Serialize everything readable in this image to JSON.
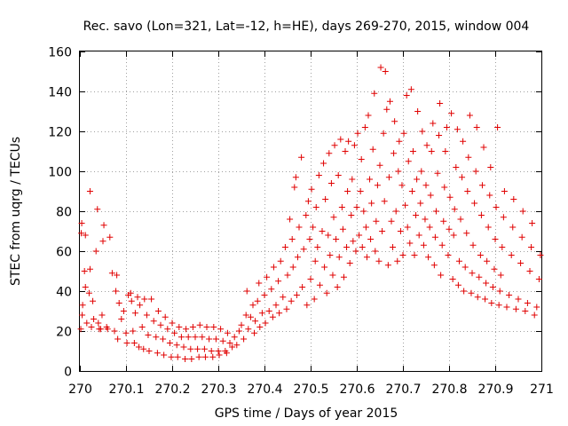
{
  "chart_data": {
    "type": "scatter",
    "title": "Rec. savo (Lon=321, Lat=-12, h=HE), days 269-270, 2015, window 004",
    "xlabel": "GPS time / Days of year 2015",
    "ylabel": "STEC from uqrg / TECUs",
    "xlim": [
      270,
      271
    ],
    "ylim": [
      0,
      160
    ],
    "xticks": [
      270,
      270.1,
      270.2,
      270.3,
      270.4,
      270.5,
      270.6,
      270.7,
      270.8,
      270.9,
      271
    ],
    "xtick_labels": [
      "270",
      "270.1",
      "270.2",
      "270.3",
      "270.4",
      "270.5",
      "270.6",
      "270.7",
      "270.8",
      "270.9",
      "271"
    ],
    "yticks": [
      0,
      20,
      40,
      60,
      80,
      100,
      120,
      140,
      160
    ],
    "ytick_labels": [
      "0",
      "20",
      "40",
      "60",
      "80",
      "100",
      "120",
      "140",
      "160"
    ],
    "grid": true,
    "marker": "+",
    "color": "#e00000",
    "points": [
      [
        270.002,
        21
      ],
      [
        270.003,
        69
      ],
      [
        270.004,
        74
      ],
      [
        270.005,
        28
      ],
      [
        270.006,
        33
      ],
      [
        270.01,
        50
      ],
      [
        270.012,
        68
      ],
      [
        270.012,
        42
      ],
      [
        270.015,
        24
      ],
      [
        270.02,
        39
      ],
      [
        270.022,
        51
      ],
      [
        270.022,
        90
      ],
      [
        270.025,
        22
      ],
      [
        270.028,
        35
      ],
      [
        270.03,
        26
      ],
      [
        270.035,
        60
      ],
      [
        270.038,
        81
      ],
      [
        270.04,
        24
      ],
      [
        270.042,
        21
      ],
      [
        270.045,
        21
      ],
      [
        270.048,
        28
      ],
      [
        270.05,
        65
      ],
      [
        270.052,
        73
      ],
      [
        270.058,
        22
      ],
      [
        270.06,
        21
      ],
      [
        270.065,
        67
      ],
      [
        270.07,
        49
      ],
      [
        270.075,
        20
      ],
      [
        270.078,
        40
      ],
      [
        270.08,
        48
      ],
      [
        270.082,
        16
      ],
      [
        270.085,
        34
      ],
      [
        270.09,
        26
      ],
      [
        270.095,
        30
      ],
      [
        270.1,
        19
      ],
      [
        270.102,
        14
      ],
      [
        270.105,
        38
      ],
      [
        270.11,
        39
      ],
      [
        270.112,
        35
      ],
      [
        270.115,
        20
      ],
      [
        270.118,
        14
      ],
      [
        270.12,
        29
      ],
      [
        270.125,
        37
      ],
      [
        270.128,
        12
      ],
      [
        270.13,
        33
      ],
      [
        270.135,
        22
      ],
      [
        270.138,
        11
      ],
      [
        270.14,
        36
      ],
      [
        270.145,
        28
      ],
      [
        270.148,
        18
      ],
      [
        270.15,
        10
      ],
      [
        270.155,
        36
      ],
      [
        270.16,
        25
      ],
      [
        270.165,
        17
      ],
      [
        270.168,
        9
      ],
      [
        270.17,
        30
      ],
      [
        270.175,
        23
      ],
      [
        270.18,
        16
      ],
      [
        270.182,
        8
      ],
      [
        270.185,
        27
      ],
      [
        270.19,
        21
      ],
      [
        270.195,
        14
      ],
      [
        270.198,
        7
      ],
      [
        270.2,
        24
      ],
      [
        270.205,
        19
      ],
      [
        270.21,
        13
      ],
      [
        270.212,
        7
      ],
      [
        270.215,
        22
      ],
      [
        270.22,
        17
      ],
      [
        270.225,
        12
      ],
      [
        270.228,
        6
      ],
      [
        270.23,
        21
      ],
      [
        270.235,
        17
      ],
      [
        270.24,
        11
      ],
      [
        270.242,
        6
      ],
      [
        270.245,
        22
      ],
      [
        270.25,
        17
      ],
      [
        270.255,
        11
      ],
      [
        270.258,
        7
      ],
      [
        270.26,
        23
      ],
      [
        270.265,
        17
      ],
      [
        270.27,
        11
      ],
      [
        270.272,
        7
      ],
      [
        270.275,
        22
      ],
      [
        270.28,
        16
      ],
      [
        270.285,
        10
      ],
      [
        270.288,
        7
      ],
      [
        270.29,
        22
      ],
      [
        270.295,
        16
      ],
      [
        270.3,
        10
      ],
      [
        270.302,
        8
      ],
      [
        270.305,
        21
      ],
      [
        270.31,
        15
      ],
      [
        270.315,
        10
      ],
      [
        270.318,
        9
      ],
      [
        270.32,
        19
      ],
      [
        270.325,
        14
      ],
      [
        270.33,
        12
      ],
      [
        270.335,
        17
      ],
      [
        270.34,
        13
      ],
      [
        270.345,
        20
      ],
      [
        270.35,
        23
      ],
      [
        270.355,
        16
      ],
      [
        270.36,
        28
      ],
      [
        270.362,
        40
      ],
      [
        270.365,
        21
      ],
      [
        270.37,
        27
      ],
      [
        270.375,
        33
      ],
      [
        270.378,
        19
      ],
      [
        270.38,
        25
      ],
      [
        270.385,
        35
      ],
      [
        270.388,
        44
      ],
      [
        270.39,
        22
      ],
      [
        270.395,
        29
      ],
      [
        270.4,
        38
      ],
      [
        270.402,
        24
      ],
      [
        270.405,
        47
      ],
      [
        270.41,
        30
      ],
      [
        270.415,
        41
      ],
      [
        270.418,
        27
      ],
      [
        270.42,
        52
      ],
      [
        270.425,
        33
      ],
      [
        270.43,
        45
      ],
      [
        270.432,
        29
      ],
      [
        270.435,
        55
      ],
      [
        270.44,
        37
      ],
      [
        270.445,
        62
      ],
      [
        270.448,
        31
      ],
      [
        270.45,
        48
      ],
      [
        270.455,
        76
      ],
      [
        270.458,
        35
      ],
      [
        270.46,
        66
      ],
      [
        270.462,
        52
      ],
      [
        270.465,
        92
      ],
      [
        270.468,
        97
      ],
      [
        270.47,
        38
      ],
      [
        270.472,
        57
      ],
      [
        270.475,
        72
      ],
      [
        270.48,
        107
      ],
      [
        270.482,
        42
      ],
      [
        270.485,
        61
      ],
      [
        270.49,
        78
      ],
      [
        270.492,
        33
      ],
      [
        270.495,
        85
      ],
      [
        270.498,
        66
      ],
      [
        270.5,
        46
      ],
      [
        270.502,
        91
      ],
      [
        270.505,
        72
      ],
      [
        270.508,
        36
      ],
      [
        270.51,
        55
      ],
      [
        270.512,
        82
      ],
      [
        270.515,
        62
      ],
      [
        270.518,
        98
      ],
      [
        270.52,
        43
      ],
      [
        270.525,
        70
      ],
      [
        270.528,
        104
      ],
      [
        270.53,
        52
      ],
      [
        270.532,
        86
      ],
      [
        270.535,
        39
      ],
      [
        270.538,
        68
      ],
      [
        270.54,
        109
      ],
      [
        270.542,
        58
      ],
      [
        270.545,
        94
      ],
      [
        270.548,
        48
      ],
      [
        270.55,
        77
      ],
      [
        270.552,
        113
      ],
      [
        270.555,
        66
      ],
      [
        270.558,
        42
      ],
      [
        270.56,
        98
      ],
      [
        270.562,
        57
      ],
      [
        270.565,
        116
      ],
      [
        270.568,
        82
      ],
      [
        270.57,
        71
      ],
      [
        270.572,
        47
      ],
      [
        270.575,
        110
      ],
      [
        270.578,
        62
      ],
      [
        270.58,
        90
      ],
      [
        270.582,
        115
      ],
      [
        270.585,
        54
      ],
      [
        270.588,
        78
      ],
      [
        270.59,
        96
      ],
      [
        270.592,
        65
      ],
      [
        270.595,
        113
      ],
      [
        270.598,
        60
      ],
      [
        270.6,
        82
      ],
      [
        270.602,
        119
      ],
      [
        270.605,
        68
      ],
      [
        270.608,
        90
      ],
      [
        270.61,
        106
      ],
      [
        270.612,
        62
      ],
      [
        270.615,
        80
      ],
      [
        270.618,
        122
      ],
      [
        270.62,
        72
      ],
      [
        270.622,
        57
      ],
      [
        270.625,
        128
      ],
      [
        270.628,
        96
      ],
      [
        270.63,
        66
      ],
      [
        270.632,
        84
      ],
      [
        270.635,
        111
      ],
      [
        270.638,
        139
      ],
      [
        270.64,
        60
      ],
      [
        270.642,
        75
      ],
      [
        270.645,
        93
      ],
      [
        270.648,
        55
      ],
      [
        270.65,
        103
      ],
      [
        270.652,
        152
      ],
      [
        270.655,
        70
      ],
      [
        270.658,
        119
      ],
      [
        270.66,
        85
      ],
      [
        270.662,
        150
      ],
      [
        270.665,
        131
      ],
      [
        270.668,
        53
      ],
      [
        270.67,
        97
      ],
      [
        270.672,
        135
      ],
      [
        270.675,
        75
      ],
      [
        270.678,
        62
      ],
      [
        270.68,
        109
      ],
      [
        270.682,
        125
      ],
      [
        270.685,
        80
      ],
      [
        270.688,
        55
      ],
      [
        270.69,
        100
      ],
      [
        270.692,
        115
      ],
      [
        270.695,
        70
      ],
      [
        270.698,
        93
      ],
      [
        270.7,
        58
      ],
      [
        270.702,
        119
      ],
      [
        270.705,
        83
      ],
      [
        270.708,
        138
      ],
      [
        270.71,
        72
      ],
      [
        270.712,
        105
      ],
      [
        270.715,
        64
      ],
      [
        270.718,
        141
      ],
      [
        270.72,
        90
      ],
      [
        270.722,
        110
      ],
      [
        270.725,
        58
      ],
      [
        270.728,
        78
      ],
      [
        270.73,
        96
      ],
      [
        270.732,
        130
      ],
      [
        270.735,
        68
      ],
      [
        270.738,
        84
      ],
      [
        270.74,
        100
      ],
      [
        270.742,
        120
      ],
      [
        270.745,
        63
      ],
      [
        270.748,
        76
      ],
      [
        270.75,
        93
      ],
      [
        270.752,
        113
      ],
      [
        270.755,
        57
      ],
      [
        270.758,
        72
      ],
      [
        270.76,
        88
      ],
      [
        270.762,
        110
      ],
      [
        270.765,
        124
      ],
      [
        270.768,
        53
      ],
      [
        270.77,
        67
      ],
      [
        270.772,
        80
      ],
      [
        270.775,
        99
      ],
      [
        270.778,
        118
      ],
      [
        270.78,
        134
      ],
      [
        270.782,
        48
      ],
      [
        270.785,
        63
      ],
      [
        270.788,
        75
      ],
      [
        270.79,
        92
      ],
      [
        270.792,
        110
      ],
      [
        270.795,
        122
      ],
      [
        270.798,
        58
      ],
      [
        270.8,
        71
      ],
      [
        270.802,
        87
      ],
      [
        270.805,
        129
      ],
      [
        270.808,
        46
      ],
      [
        270.81,
        68
      ],
      [
        270.812,
        81
      ],
      [
        270.815,
        102
      ],
      [
        270.818,
        121
      ],
      [
        270.82,
        43
      ],
      [
        270.822,
        55
      ],
      [
        270.825,
        76
      ],
      [
        270.828,
        97
      ],
      [
        270.83,
        115
      ],
      [
        270.832,
        40
      ],
      [
        270.835,
        52
      ],
      [
        270.838,
        69
      ],
      [
        270.84,
        90
      ],
      [
        270.842,
        107
      ],
      [
        270.845,
        128
      ],
      [
        270.848,
        39
      ],
      [
        270.85,
        49
      ],
      [
        270.852,
        63
      ],
      [
        270.855,
        84
      ],
      [
        270.858,
        100
      ],
      [
        270.86,
        122
      ],
      [
        270.862,
        37
      ],
      [
        270.865,
        47
      ],
      [
        270.868,
        58
      ],
      [
        270.87,
        78
      ],
      [
        270.872,
        93
      ],
      [
        270.875,
        112
      ],
      [
        270.878,
        36
      ],
      [
        270.88,
        44
      ],
      [
        270.882,
        55
      ],
      [
        270.885,
        72
      ],
      [
        270.888,
        88
      ],
      [
        270.89,
        102
      ],
      [
        270.892,
        34
      ],
      [
        270.895,
        42
      ],
      [
        270.898,
        51
      ],
      [
        270.9,
        66
      ],
      [
        270.902,
        82
      ],
      [
        270.905,
        122
      ],
      [
        270.908,
        33
      ],
      [
        270.91,
        40
      ],
      [
        270.912,
        48
      ],
      [
        270.915,
        62
      ],
      [
        270.918,
        77
      ],
      [
        270.92,
        90
      ],
      [
        270.925,
        32
      ],
      [
        270.93,
        38
      ],
      [
        270.935,
        58
      ],
      [
        270.938,
        72
      ],
      [
        270.94,
        86
      ],
      [
        270.945,
        31
      ],
      [
        270.95,
        36
      ],
      [
        270.955,
        54
      ],
      [
        270.958,
        67
      ],
      [
        270.96,
        80
      ],
      [
        270.965,
        30
      ],
      [
        270.97,
        34
      ],
      [
        270.975,
        50
      ],
      [
        270.978,
        62
      ],
      [
        270.98,
        74
      ],
      [
        270.985,
        28
      ],
      [
        270.99,
        32
      ],
      [
        270.995,
        46
      ],
      [
        270.998,
        58
      ]
    ]
  }
}
